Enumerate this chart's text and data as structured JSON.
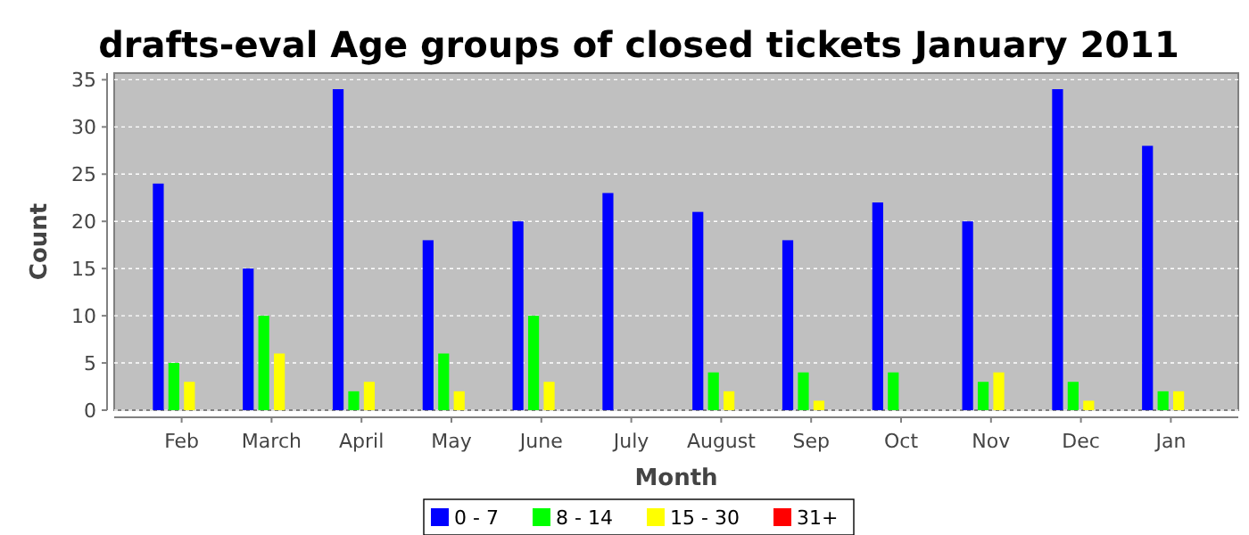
{
  "chart_data": {
    "type": "bar",
    "title": "drafts-eval Age groups of closed tickets January 2011",
    "xlabel": "Month",
    "ylabel": "Count",
    "categories": [
      "Feb",
      "March",
      "April",
      "May",
      "June",
      "July",
      "August",
      "Sep",
      "Oct",
      "Nov",
      "Dec",
      "Jan"
    ],
    "series": [
      {
        "name": "0 - 7",
        "color": "#0000ff",
        "values": [
          24,
          15,
          34,
          18,
          20,
          23,
          21,
          18,
          22,
          20,
          34,
          28
        ]
      },
      {
        "name": "8 - 14",
        "color": "#00ff00",
        "values": [
          5,
          10,
          2,
          6,
          10,
          0,
          4,
          4,
          4,
          3,
          3,
          2
        ]
      },
      {
        "name": "15 - 30",
        "color": "#ffff00",
        "values": [
          3,
          6,
          3,
          2,
          3,
          0,
          2,
          1,
          0,
          4,
          1,
          2
        ]
      },
      {
        "name": "31+",
        "color": "#ff0000",
        "values": [
          0,
          0,
          0,
          0,
          0,
          0,
          0,
          0,
          0,
          0,
          0,
          0
        ]
      }
    ],
    "ylim": [
      0,
      35.7
    ],
    "yticks": [
      0,
      5,
      10,
      15,
      20,
      25,
      30,
      35
    ],
    "grid": "y",
    "legend": "bottom"
  }
}
